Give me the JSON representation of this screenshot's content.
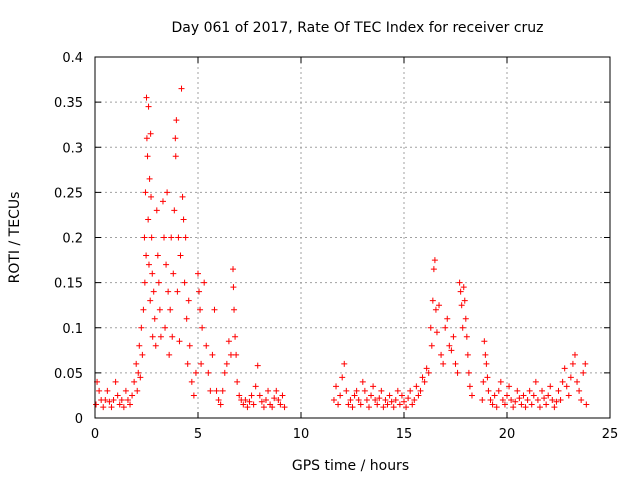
{
  "chart_data": {
    "type": "scatter",
    "title": "Day 061 of 2017, Rate Of TEC Index for receiver cruz",
    "xlabel": "GPS time / hours",
    "ylabel": "ROTI / TECUs",
    "xlim": [
      0,
      25
    ],
    "ylim": [
      0,
      0.4
    ],
    "x_ticks": [
      0,
      5,
      10,
      15,
      20,
      25
    ],
    "x_tick_labels": [
      "0",
      "5",
      "10",
      "15",
      "20",
      "25"
    ],
    "y_ticks": [
      0,
      0.05,
      0.1,
      0.15,
      0.2,
      0.25,
      0.3,
      0.35,
      0.4
    ],
    "y_tick_labels": [
      "0",
      "0.05",
      "0.1",
      "0.15",
      "0.2",
      "0.25",
      "0.3",
      "0.35",
      "0.4"
    ],
    "grid": true,
    "marker": "+",
    "color": "#ff0000",
    "series": [
      {
        "name": "ROTI",
        "points": [
          [
            0.05,
            0.015
          ],
          [
            0.1,
            0.04
          ],
          [
            0.2,
            0.03
          ],
          [
            0.3,
            0.02
          ],
          [
            0.4,
            0.012
          ],
          [
            0.5,
            0.02
          ],
          [
            0.6,
            0.03
          ],
          [
            0.7,
            0.018
          ],
          [
            0.8,
            0.012
          ],
          [
            0.9,
            0.02
          ],
          [
            1.0,
            0.04
          ],
          [
            1.1,
            0.025
          ],
          [
            1.2,
            0.015
          ],
          [
            1.3,
            0.02
          ],
          [
            1.4,
            0.012
          ],
          [
            1.5,
            0.03
          ],
          [
            1.6,
            0.02
          ],
          [
            1.7,
            0.015
          ],
          [
            1.8,
            0.025
          ],
          [
            1.9,
            0.04
          ],
          [
            2.0,
            0.06
          ],
          [
            2.05,
            0.03
          ],
          [
            2.1,
            0.05
          ],
          [
            2.15,
            0.08
          ],
          [
            2.2,
            0.045
          ],
          [
            2.25,
            0.1
          ],
          [
            2.3,
            0.07
          ],
          [
            2.35,
            0.12
          ],
          [
            2.4,
            0.2
          ],
          [
            2.42,
            0.15
          ],
          [
            2.45,
            0.25
          ],
          [
            2.48,
            0.18
          ],
          [
            2.5,
            0.355
          ],
          [
            2.52,
            0.31
          ],
          [
            2.55,
            0.29
          ],
          [
            2.58,
            0.22
          ],
          [
            2.6,
            0.345
          ],
          [
            2.62,
            0.17
          ],
          [
            2.65,
            0.265
          ],
          [
            2.68,
            0.13
          ],
          [
            2.7,
            0.315
          ],
          [
            2.72,
            0.245
          ],
          [
            2.75,
            0.2
          ],
          [
            2.78,
            0.16
          ],
          [
            2.8,
            0.09
          ],
          [
            2.85,
            0.14
          ],
          [
            2.9,
            0.11
          ],
          [
            2.95,
            0.08
          ],
          [
            3.0,
            0.23
          ],
          [
            3.05,
            0.18
          ],
          [
            3.1,
            0.15
          ],
          [
            3.15,
            0.12
          ],
          [
            3.2,
            0.09
          ],
          [
            3.3,
            0.24
          ],
          [
            3.35,
            0.2
          ],
          [
            3.4,
            0.1
          ],
          [
            3.45,
            0.17
          ],
          [
            3.5,
            0.25
          ],
          [
            3.55,
            0.14
          ],
          [
            3.6,
            0.07
          ],
          [
            3.65,
            0.12
          ],
          [
            3.7,
            0.2
          ],
          [
            3.75,
            0.09
          ],
          [
            3.8,
            0.16
          ],
          [
            3.85,
            0.23
          ],
          [
            3.9,
            0.31
          ],
          [
            3.92,
            0.29
          ],
          [
            3.95,
            0.33
          ],
          [
            4.0,
            0.14
          ],
          [
            4.05,
            0.2
          ],
          [
            4.1,
            0.085
          ],
          [
            4.15,
            0.18
          ],
          [
            4.2,
            0.365
          ],
          [
            4.25,
            0.245
          ],
          [
            4.3,
            0.22
          ],
          [
            4.35,
            0.15
          ],
          [
            4.4,
            0.2
          ],
          [
            4.45,
            0.11
          ],
          [
            4.5,
            0.06
          ],
          [
            4.55,
            0.13
          ],
          [
            4.6,
            0.08
          ],
          [
            4.7,
            0.04
          ],
          [
            4.8,
            0.025
          ],
          [
            4.9,
            0.05
          ],
          [
            5.0,
            0.16
          ],
          [
            5.05,
            0.14
          ],
          [
            5.1,
            0.12
          ],
          [
            5.15,
            0.06
          ],
          [
            5.2,
            0.1
          ],
          [
            5.3,
            0.15
          ],
          [
            5.4,
            0.08
          ],
          [
            5.5,
            0.05
          ],
          [
            5.6,
            0.03
          ],
          [
            5.7,
            0.07
          ],
          [
            5.8,
            0.12
          ],
          [
            5.9,
            0.03
          ],
          [
            6.0,
            0.02
          ],
          [
            6.1,
            0.015
          ],
          [
            6.2,
            0.03
          ],
          [
            6.3,
            0.05
          ],
          [
            6.4,
            0.06
          ],
          [
            6.5,
            0.085
          ],
          [
            6.6,
            0.07
          ],
          [
            6.7,
            0.165
          ],
          [
            6.72,
            0.145
          ],
          [
            6.75,
            0.12
          ],
          [
            6.8,
            0.09
          ],
          [
            6.85,
            0.07
          ],
          [
            6.9,
            0.04
          ],
          [
            7.0,
            0.025
          ],
          [
            7.1,
            0.02
          ],
          [
            7.2,
            0.015
          ],
          [
            7.3,
            0.02
          ],
          [
            7.4,
            0.012
          ],
          [
            7.5,
            0.018
          ],
          [
            7.6,
            0.025
          ],
          [
            7.7,
            0.015
          ],
          [
            7.8,
            0.035
          ],
          [
            7.9,
            0.058
          ],
          [
            8.0,
            0.025
          ],
          [
            8.1,
            0.018
          ],
          [
            8.2,
            0.012
          ],
          [
            8.3,
            0.02
          ],
          [
            8.4,
            0.03
          ],
          [
            8.5,
            0.015
          ],
          [
            8.6,
            0.012
          ],
          [
            8.7,
            0.022
          ],
          [
            8.8,
            0.03
          ],
          [
            8.9,
            0.02
          ],
          [
            9.0,
            0.015
          ],
          [
            9.1,
            0.025
          ],
          [
            9.2,
            0.012
          ],
          [
            11.6,
            0.02
          ],
          [
            11.7,
            0.035
          ],
          [
            11.8,
            0.015
          ],
          [
            11.9,
            0.025
          ],
          [
            12.0,
            0.045
          ],
          [
            12.1,
            0.06
          ],
          [
            12.2,
            0.03
          ],
          [
            12.3,
            0.015
          ],
          [
            12.4,
            0.02
          ],
          [
            12.5,
            0.012
          ],
          [
            12.6,
            0.025
          ],
          [
            12.7,
            0.03
          ],
          [
            12.8,
            0.02
          ],
          [
            12.9,
            0.015
          ],
          [
            13.0,
            0.04
          ],
          [
            13.1,
            0.03
          ],
          [
            13.2,
            0.02
          ],
          [
            13.3,
            0.012
          ],
          [
            13.4,
            0.025
          ],
          [
            13.5,
            0.035
          ],
          [
            13.6,
            0.02
          ],
          [
            13.7,
            0.015
          ],
          [
            13.8,
            0.022
          ],
          [
            13.9,
            0.03
          ],
          [
            14.0,
            0.012
          ],
          [
            14.1,
            0.02
          ],
          [
            14.2,
            0.015
          ],
          [
            14.3,
            0.025
          ],
          [
            14.4,
            0.018
          ],
          [
            14.5,
            0.012
          ],
          [
            14.6,
            0.02
          ],
          [
            14.7,
            0.03
          ],
          [
            14.8,
            0.015
          ],
          [
            14.9,
            0.025
          ],
          [
            15.0,
            0.018
          ],
          [
            15.1,
            0.012
          ],
          [
            15.2,
            0.022
          ],
          [
            15.3,
            0.03
          ],
          [
            15.4,
            0.015
          ],
          [
            15.5,
            0.02
          ],
          [
            15.6,
            0.035
          ],
          [
            15.7,
            0.025
          ],
          [
            15.8,
            0.03
          ],
          [
            15.9,
            0.045
          ],
          [
            16.0,
            0.04
          ],
          [
            16.1,
            0.055
          ],
          [
            16.2,
            0.05
          ],
          [
            16.3,
            0.1
          ],
          [
            16.35,
            0.08
          ],
          [
            16.4,
            0.13
          ],
          [
            16.45,
            0.165
          ],
          [
            16.5,
            0.175
          ],
          [
            16.55,
            0.12
          ],
          [
            16.6,
            0.095
          ],
          [
            16.7,
            0.125
          ],
          [
            16.8,
            0.07
          ],
          [
            16.9,
            0.06
          ],
          [
            17.0,
            0.1
          ],
          [
            17.1,
            0.11
          ],
          [
            17.2,
            0.08
          ],
          [
            17.3,
            0.075
          ],
          [
            17.4,
            0.09
          ],
          [
            17.5,
            0.06
          ],
          [
            17.6,
            0.05
          ],
          [
            17.7,
            0.15
          ],
          [
            17.75,
            0.14
          ],
          [
            17.8,
            0.125
          ],
          [
            17.85,
            0.1
          ],
          [
            17.9,
            0.145
          ],
          [
            17.95,
            0.13
          ],
          [
            18.0,
            0.11
          ],
          [
            18.05,
            0.09
          ],
          [
            18.1,
            0.07
          ],
          [
            18.15,
            0.05
          ],
          [
            18.2,
            0.035
          ],
          [
            18.3,
            0.025
          ],
          [
            18.8,
            0.02
          ],
          [
            18.85,
            0.04
          ],
          [
            18.9,
            0.085
          ],
          [
            18.95,
            0.07
          ],
          [
            19.0,
            0.06
          ],
          [
            19.05,
            0.045
          ],
          [
            19.1,
            0.03
          ],
          [
            19.2,
            0.02
          ],
          [
            19.3,
            0.015
          ],
          [
            19.4,
            0.025
          ],
          [
            19.5,
            0.012
          ],
          [
            19.6,
            0.03
          ],
          [
            19.7,
            0.04
          ],
          [
            19.8,
            0.02
          ],
          [
            19.9,
            0.015
          ],
          [
            20.0,
            0.025
          ],
          [
            20.1,
            0.035
          ],
          [
            20.2,
            0.02
          ],
          [
            20.3,
            0.012
          ],
          [
            20.4,
            0.018
          ],
          [
            20.5,
            0.03
          ],
          [
            20.6,
            0.022
          ],
          [
            20.7,
            0.015
          ],
          [
            20.8,
            0.025
          ],
          [
            20.9,
            0.012
          ],
          [
            21.0,
            0.02
          ],
          [
            21.1,
            0.03
          ],
          [
            21.2,
            0.015
          ],
          [
            21.3,
            0.025
          ],
          [
            21.4,
            0.04
          ],
          [
            21.5,
            0.02
          ],
          [
            21.6,
            0.012
          ],
          [
            21.7,
            0.03
          ],
          [
            21.8,
            0.022
          ],
          [
            21.9,
            0.015
          ],
          [
            22.0,
            0.025
          ],
          [
            22.1,
            0.035
          ],
          [
            22.2,
            0.02
          ],
          [
            22.3,
            0.012
          ],
          [
            22.4,
            0.018
          ],
          [
            22.5,
            0.03
          ],
          [
            22.6,
            0.02
          ],
          [
            22.7,
            0.04
          ],
          [
            22.8,
            0.055
          ],
          [
            22.9,
            0.035
          ],
          [
            23.0,
            0.025
          ],
          [
            23.1,
            0.045
          ],
          [
            23.2,
            0.06
          ],
          [
            23.3,
            0.07
          ],
          [
            23.4,
            0.04
          ],
          [
            23.5,
            0.03
          ],
          [
            23.6,
            0.02
          ],
          [
            23.7,
            0.05
          ],
          [
            23.8,
            0.06
          ],
          [
            23.85,
            0.015
          ]
        ]
      }
    ]
  }
}
